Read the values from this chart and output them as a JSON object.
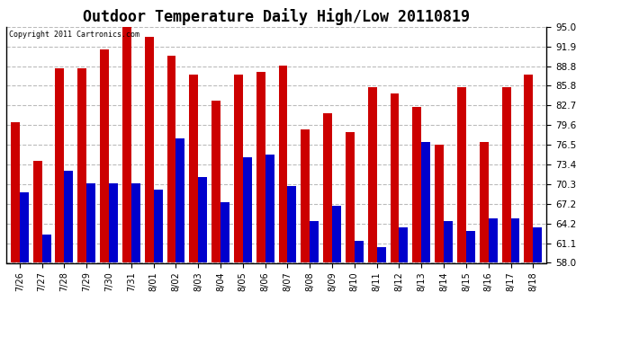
{
  "title": "Outdoor Temperature Daily High/Low 20110819",
  "copyright": "Copyright 2011 Cartronics.com",
  "dates": [
    "7/26",
    "7/27",
    "7/28",
    "7/29",
    "7/30",
    "7/31",
    "8/01",
    "8/02",
    "8/03",
    "8/04",
    "8/05",
    "8/06",
    "8/07",
    "8/08",
    "8/09",
    "8/10",
    "8/11",
    "8/12",
    "8/13",
    "8/14",
    "8/15",
    "8/16",
    "8/17",
    "8/18"
  ],
  "highs": [
    80.0,
    74.0,
    88.5,
    88.5,
    91.5,
    95.0,
    93.5,
    90.5,
    87.5,
    83.5,
    87.5,
    88.0,
    89.0,
    79.0,
    81.5,
    78.5,
    85.5,
    84.5,
    82.5,
    76.5,
    85.5,
    77.0,
    85.5,
    87.5
  ],
  "lows": [
    69.0,
    62.5,
    72.5,
    70.5,
    70.5,
    70.5,
    69.5,
    77.5,
    71.5,
    67.5,
    74.5,
    75.0,
    70.0,
    64.5,
    67.0,
    61.5,
    60.5,
    63.5,
    77.0,
    64.5,
    63.0,
    65.0,
    65.0,
    63.5
  ],
  "high_color": "#cc0000",
  "low_color": "#0000cc",
  "ylim_min": 58.0,
  "ylim_max": 95.0,
  "yticks": [
    58.0,
    61.1,
    64.2,
    67.2,
    70.3,
    73.4,
    76.5,
    79.6,
    82.7,
    85.8,
    88.8,
    91.9,
    95.0
  ],
  "background_color": "#ffffff",
  "grid_color": "#bbbbbb",
  "title_fontsize": 12
}
